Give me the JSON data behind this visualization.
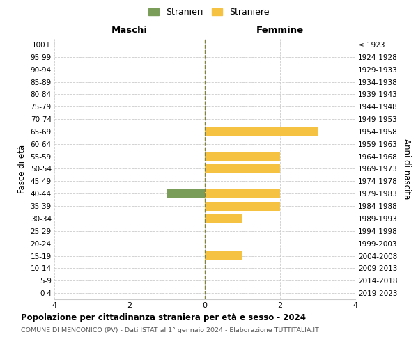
{
  "age_groups": [
    "0-4",
    "5-9",
    "10-14",
    "15-19",
    "20-24",
    "25-29",
    "30-34",
    "35-39",
    "40-44",
    "45-49",
    "50-54",
    "55-59",
    "60-64",
    "65-69",
    "70-74",
    "75-79",
    "80-84",
    "85-89",
    "90-94",
    "95-99",
    "100+"
  ],
  "birth_years": [
    "2019-2023",
    "2014-2018",
    "2009-2013",
    "2004-2008",
    "1999-2003",
    "1994-1998",
    "1989-1993",
    "1984-1988",
    "1979-1983",
    "1974-1978",
    "1969-1973",
    "1964-1968",
    "1959-1963",
    "1954-1958",
    "1949-1953",
    "1944-1948",
    "1939-1943",
    "1934-1938",
    "1929-1933",
    "1924-1928",
    "≤ 1923"
  ],
  "males": [
    0,
    0,
    0,
    0,
    0,
    0,
    0,
    0,
    1,
    0,
    0,
    0,
    0,
    0,
    0,
    0,
    0,
    0,
    0,
    0,
    0
  ],
  "females": [
    0,
    0,
    0,
    1,
    0,
    0,
    1,
    2,
    2,
    0,
    2,
    2,
    0,
    3,
    0,
    0,
    0,
    0,
    0,
    0,
    0
  ],
  "male_color": "#7a9e59",
  "female_color": "#f5c242",
  "axis_line_color": "#808040",
  "grid_color": "#cccccc",
  "bg_color": "#ffffff",
  "title": "Popolazione per cittadinanza straniera per età e sesso - 2024",
  "subtitle": "COMUNE DI MENCONICO (PV) - Dati ISTAT al 1° gennaio 2024 - Elaborazione TUTTITALIA.IT",
  "xlabel_left": "Maschi",
  "xlabel_right": "Femmine",
  "ylabel_left": "Fasce di età",
  "ylabel_right": "Anni di nascita",
  "legend_male": "Stranieri",
  "legend_female": "Straniere",
  "xlim": 4
}
